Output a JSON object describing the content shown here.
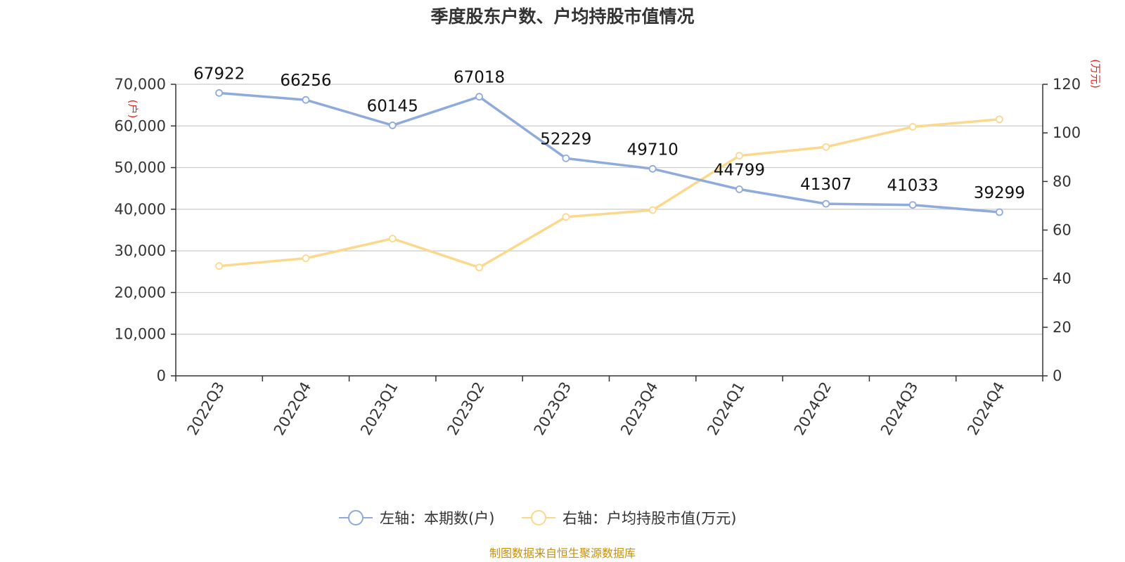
{
  "chart_data": {
    "type": "line",
    "title": "季度股东户数、户均持股市值情况",
    "categories": [
      "2022Q3",
      "2022Q4",
      "2023Q1",
      "2023Q2",
      "2023Q3",
      "2023Q4",
      "2024Q1",
      "2024Q2",
      "2024Q3",
      "2024Q4"
    ],
    "left_axis": {
      "unit": "(户)",
      "ylim": [
        0,
        70000
      ],
      "ticks": [
        "0",
        "10,000",
        "20,000",
        "30,000",
        "40,000",
        "50,000",
        "60,000",
        "70,000"
      ]
    },
    "right_axis": {
      "unit": "(万元)",
      "ylim": [
        0,
        120
      ],
      "ticks": [
        "0",
        "20",
        "40",
        "60",
        "80",
        "100",
        "120"
      ]
    },
    "series": [
      {
        "name": "左轴：本期数(户)",
        "axis": "left",
        "color": "#8faadc",
        "values": [
          67922,
          66256,
          60145,
          67018,
          52229,
          49710,
          44799,
          41307,
          41033,
          39299
        ],
        "labels": [
          "67922",
          "66256",
          "60145",
          "67018",
          "52229",
          "49710",
          "44799",
          "41307",
          "41033",
          "39299"
        ]
      },
      {
        "name": "右轴：户均持股市值(万元)",
        "axis": "right",
        "color": "#fcd88c",
        "values": [
          45.2,
          48.4,
          56.5,
          44.6,
          65.4,
          68.2,
          90.6,
          94.2,
          102.5,
          105.6
        ]
      }
    ],
    "grid": true,
    "legend_position": "bottom-center",
    "source": "制图数据来自恒生聚源数据库",
    "source_color": "#c8900c"
  }
}
